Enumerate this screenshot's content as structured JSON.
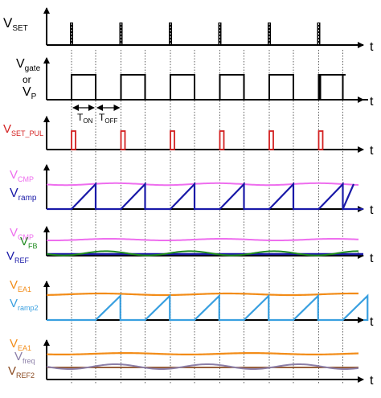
{
  "colors": {
    "black": "#000000",
    "red": "#d32020",
    "magenta": "#ee6eee",
    "navy": "#1a1aa8",
    "green": "#1e8a1e",
    "orange": "#f28c18",
    "lightblue": "#3aa0e0",
    "purple": "#8c7fa8",
    "brown": "#8a4a20"
  },
  "axis_label": "t",
  "panels": {
    "vset": {
      "label": "V",
      "sub": "SET"
    },
    "vgate": {
      "line1": "V",
      "line1_sub": "gate",
      "line2": "or",
      "line3": "V",
      "line3_sub": "P"
    },
    "timing": {
      "ton": "T",
      "ton_sub": "ON",
      "toff": "T",
      "toff_sub": "OFF"
    },
    "vsetpul": {
      "label": "V",
      "sub": "SET_PUL"
    },
    "ramp": {
      "cmp": "V",
      "cmp_sub": "CMP",
      "ramp": "V",
      "ramp_sub": "ramp"
    },
    "fb": {
      "cmp": "V",
      "cmp_sub": "CMP",
      "fb": "V",
      "fb_sub": "FB",
      "ref": "V",
      "ref_sub": "REF"
    },
    "ea1": {
      "ea": "V",
      "ea_sub": "EA1",
      "ramp2": "V",
      "ramp2_sub": "ramp2"
    },
    "freq": {
      "ea": "V",
      "ea_sub": "EA1",
      "freq": "V",
      "freq_sub": "freq",
      "ref2": "V",
      "ref2_sub": "REF2"
    }
  }
}
